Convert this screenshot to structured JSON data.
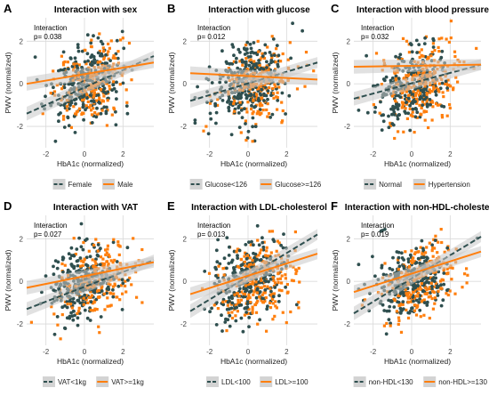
{
  "figure": {
    "colors": {
      "group1": "#2f4f4f",
      "group2": "#ff7f0e",
      "grid": "#d9d9d9",
      "ribbon": "#c8c8c8"
    }
  },
  "chart_data": [
    {
      "type": "scatter",
      "letter": "A",
      "title": "Interaction with sex",
      "xlabel": "HbA1c (normalized)",
      "ylabel": "PWV (normalized)",
      "xlim": [
        -3.0,
        3.6
      ],
      "ylim": [
        -3.0,
        3.1
      ],
      "xticks": [
        -2,
        0,
        2
      ],
      "yticks": [
        -2,
        0,
        2
      ],
      "grid": true,
      "legend_position": "bottom",
      "annotation": "Interaction",
      "annotation2": "p= 0.038",
      "series": [
        {
          "name": "Female",
          "color": "#2f4f4f",
          "line": [
            [
              -3.0,
              -1.4
            ],
            [
              3.6,
              1.3
            ]
          ]
        },
        {
          "name": "Male",
          "color": "#ff7f0e",
          "line": [
            [
              -3.0,
              0.0
            ],
            [
              3.6,
              1.0
            ]
          ]
        }
      ]
    },
    {
      "type": "scatter",
      "letter": "B",
      "title": "Interaction with glucose",
      "xlabel": "HbA1c (normalized)",
      "ylabel": "PWV (normalized)",
      "xlim": [
        -3.0,
        3.6
      ],
      "ylim": [
        -3.0,
        3.1
      ],
      "xticks": [
        -2,
        0,
        2
      ],
      "yticks": [
        -2,
        0,
        2
      ],
      "grid": true,
      "legend_position": "bottom",
      "annotation": "Interaction",
      "annotation2": "p= 0.012",
      "series": [
        {
          "name": "Glucose<126",
          "color": "#2f4f4f",
          "line": [
            [
              -3.0,
              -0.8
            ],
            [
              3.6,
              1.0
            ]
          ]
        },
        {
          "name": "Glucose>=126",
          "color": "#ff7f0e",
          "line": [
            [
              -3.0,
              0.5
            ],
            [
              3.6,
              0.2
            ]
          ]
        }
      ]
    },
    {
      "type": "scatter",
      "letter": "C",
      "title": "Interaction with blood pressure",
      "xlabel": "HbA1c (normalized)",
      "ylabel": "PWV (normalized)",
      "xlim": [
        -3.0,
        3.6
      ],
      "ylim": [
        -3.0,
        3.1
      ],
      "xticks": [
        -2,
        0,
        2
      ],
      "yticks": [
        -2,
        0,
        2
      ],
      "grid": true,
      "legend_position": "bottom",
      "annotation": "Interaction",
      "annotation2": "p= 0.032",
      "series": [
        {
          "name": "Normal",
          "color": "#2f4f4f",
          "line": [
            [
              -3.0,
              -0.7
            ],
            [
              3.6,
              0.9
            ]
          ]
        },
        {
          "name": "Hypertension",
          "color": "#ff7f0e",
          "line": [
            [
              -3.0,
              0.8
            ],
            [
              3.6,
              0.9
            ]
          ]
        }
      ]
    },
    {
      "type": "scatter",
      "letter": "D",
      "title": "Interaction with VAT",
      "xlabel": "HbA1c (normalized)",
      "ylabel": "PWV (normalized)",
      "xlim": [
        -3.0,
        3.6
      ],
      "ylim": [
        -3.0,
        3.1
      ],
      "xticks": [
        -2,
        0,
        2
      ],
      "yticks": [
        -2,
        0,
        2
      ],
      "grid": true,
      "legend_position": "bottom",
      "annotation": "Interaction",
      "annotation2": "p= 0.027",
      "series": [
        {
          "name": "VAT<1kg",
          "color": "#2f4f4f",
          "line": [
            [
              -3.0,
              -1.3
            ],
            [
              3.6,
              1.0
            ]
          ]
        },
        {
          "name": "VAT>=1kg",
          "color": "#ff7f0e",
          "line": [
            [
              -3.0,
              -0.3
            ],
            [
              3.6,
              0.9
            ]
          ]
        }
      ]
    },
    {
      "type": "scatter",
      "letter": "E",
      "title": "Interaction with LDL-cholesterol",
      "xlabel": "HbA1c (normalized)",
      "ylabel": "PWV (normalized)",
      "xlim": [
        -3.0,
        3.6
      ],
      "ylim": [
        -3.0,
        3.1
      ],
      "xticks": [
        -2,
        0,
        2
      ],
      "yticks": [
        -2,
        0,
        2
      ],
      "grid": true,
      "legend_position": "bottom",
      "annotation": "Interaction",
      "annotation2": "p= 0.013",
      "series": [
        {
          "name": "LDL<100",
          "color": "#2f4f4f",
          "line": [
            [
              -3.0,
              -1.4
            ],
            [
              3.6,
              2.2
            ]
          ]
        },
        {
          "name": "LDL>=100",
          "color": "#ff7f0e",
          "line": [
            [
              -3.0,
              -0.6
            ],
            [
              3.6,
              1.3
            ]
          ]
        }
      ]
    },
    {
      "type": "scatter",
      "letter": "F",
      "title": "Interaction with non-HDL-cholesterol",
      "xlabel": "HbA1c (normalized)",
      "ylabel": "PWV (normalized)",
      "xlim": [
        -3.0,
        3.6
      ],
      "ylim": [
        -3.0,
        3.1
      ],
      "xticks": [
        -2,
        0,
        2
      ],
      "yticks": [
        -2,
        0,
        2
      ],
      "grid": true,
      "legend_position": "bottom",
      "annotation": "Interaction",
      "annotation2": "p= 0.019",
      "series": [
        {
          "name": "non-HDL<130",
          "color": "#2f4f4f",
          "line": [
            [
              -3.0,
              -1.5
            ],
            [
              3.6,
              2.1
            ]
          ]
        },
        {
          "name": "non-HDL>=130",
          "color": "#ff7f0e",
          "line": [
            [
              -3.0,
              -0.5
            ],
            [
              3.6,
              1.4
            ]
          ]
        }
      ]
    }
  ]
}
